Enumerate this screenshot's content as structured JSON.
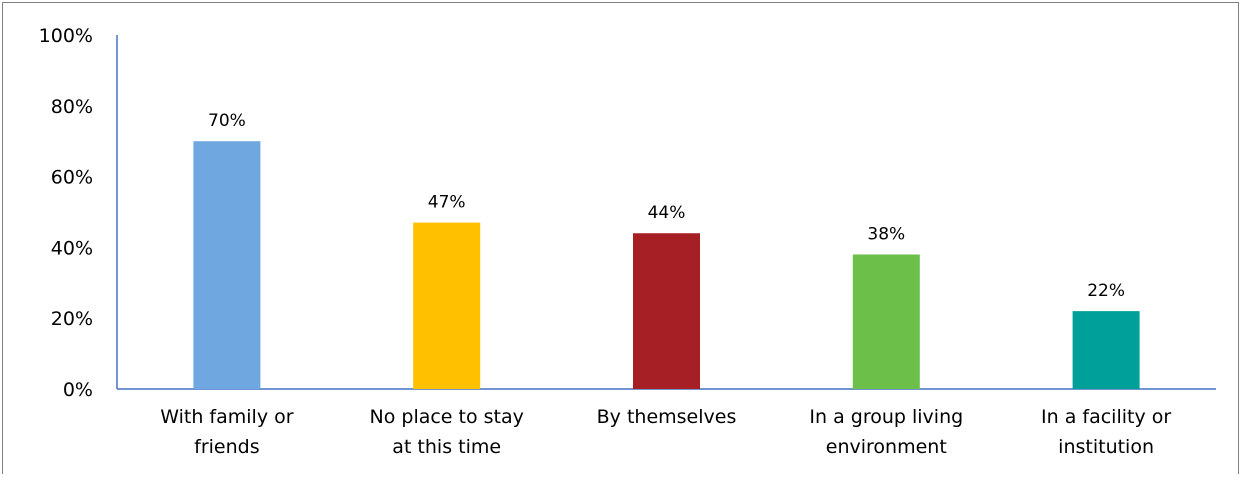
{
  "chart_data": {
    "type": "bar",
    "categories": [
      [
        "With family or",
        "friends"
      ],
      [
        "No place to stay",
        "at this time"
      ],
      [
        "By themselves"
      ],
      [
        "In a group living",
        "environment"
      ],
      [
        "In a facility or",
        "institution"
      ]
    ],
    "values": [
      70,
      47,
      44,
      38,
      22
    ],
    "data_labels": [
      "70%",
      "47%",
      "44%",
      "38%",
      "22%"
    ],
    "colors": [
      "#6fa8e0",
      "#ffc000",
      "#a51f24",
      "#6cc04a",
      "#00a09a"
    ],
    "yticks": [
      "0%",
      "20%",
      "40%",
      "60%",
      "80%",
      "100%"
    ],
    "ylim": [
      0,
      100
    ],
    "grid": false,
    "axis_color": "#4472c4"
  }
}
